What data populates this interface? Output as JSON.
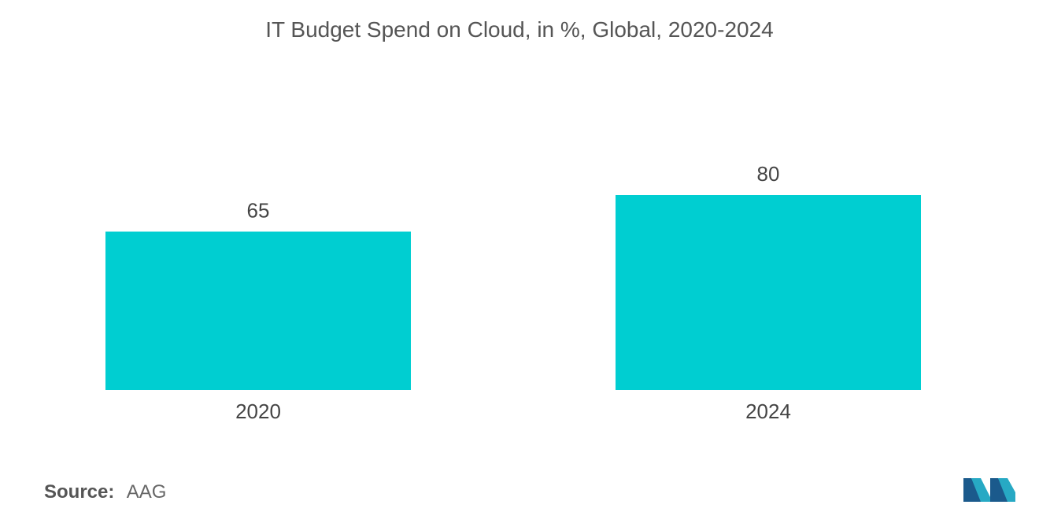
{
  "chart_data": {
    "type": "bar",
    "title": "IT Budget Spend on Cloud, in %, Global, 2020-2024",
    "categories": [
      "2020",
      "2024"
    ],
    "values": [
      65,
      80
    ],
    "xlabel": "",
    "ylabel": "",
    "ylim": [
      0,
      100
    ],
    "grid": false,
    "legend": "none",
    "bar_color": "#00CED1"
  },
  "source": {
    "label": "Source:",
    "value": "AAG"
  },
  "colors": {
    "bar": "#00CED1",
    "text": "#555555",
    "logo_dark": "#1b5a8c",
    "logo_light": "#27a9c4"
  }
}
